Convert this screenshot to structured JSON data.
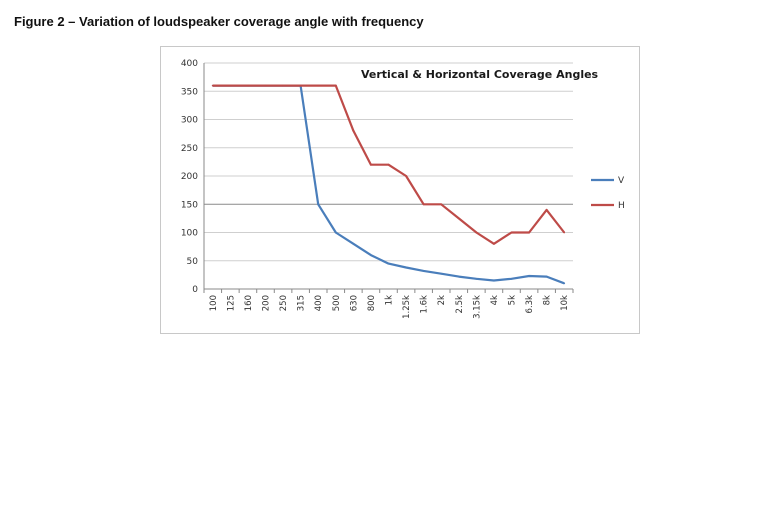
{
  "caption": "Figure 2 – Variation of loudspeaker coverage angle with frequency",
  "chart_data": {
    "type": "line",
    "title": "Vertical & Horizontal Coverage Angles",
    "xlabel": "",
    "ylabel": "",
    "categories": [
      "100",
      "125",
      "160",
      "200",
      "250",
      "315",
      "400",
      "500",
      "630",
      "800",
      "1k",
      "1.25k",
      "1.6k",
      "2k",
      "2.5k",
      "3.15k",
      "4k",
      "5k",
      "6.3k",
      "8k",
      "10k"
    ],
    "ylim": [
      0,
      400
    ],
    "yticks": [
      0,
      50,
      100,
      150,
      200,
      250,
      300,
      350,
      400
    ],
    "grid": true,
    "legend_position": "right",
    "series": [
      {
        "name": "V",
        "color": "#4a7ebb",
        "values": [
          360,
          360,
          360,
          360,
          360,
          360,
          150,
          100,
          80,
          60,
          45,
          38,
          32,
          27,
          22,
          18,
          15,
          18,
          23,
          22,
          10
        ]
      },
      {
        "name": "H",
        "color": "#be4b48",
        "values": [
          360,
          360,
          360,
          360,
          360,
          360,
          360,
          360,
          280,
          220,
          220,
          200,
          150,
          150,
          125,
          100,
          80,
          100,
          100,
          140,
          100
        ]
      }
    ]
  }
}
